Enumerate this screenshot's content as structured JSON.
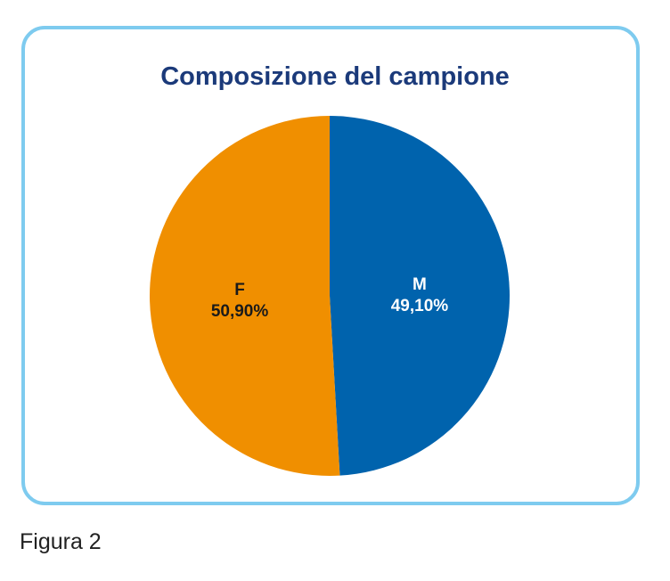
{
  "figure": {
    "caption": "Figura 2"
  },
  "chart_data": {
    "type": "pie",
    "title": "Composizione del campione",
    "slices": [
      {
        "name": "M",
        "value": 49.1,
        "label": "49,10%",
        "color": "#0063ad",
        "text_color": "#ffffff"
      },
      {
        "name": "F",
        "value": 50.9,
        "label": "50,90%",
        "color": "#f08f00",
        "text_color": "#1a1a1a"
      }
    ],
    "legend": "none"
  }
}
